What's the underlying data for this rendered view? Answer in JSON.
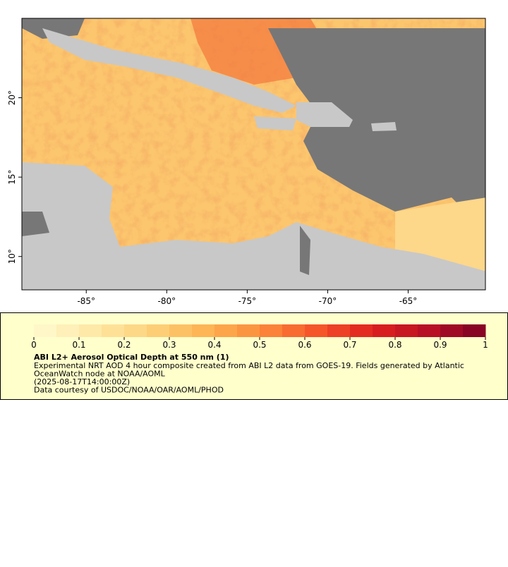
{
  "map": {
    "xlim": [
      -89,
      -60.2
    ],
    "ylim": [
      7.9,
      25
    ],
    "xticks": [
      {
        "value": -85,
        "label": "-85°"
      },
      {
        "value": -80,
        "label": "-80°"
      },
      {
        "value": -75,
        "label": "-75°"
      },
      {
        "value": -70,
        "label": "-70°"
      },
      {
        "value": -65,
        "label": "-65°"
      }
    ],
    "yticks": [
      {
        "value": 10,
        "label": "10°"
      },
      {
        "value": 15,
        "label": "15°"
      },
      {
        "value": 20,
        "label": "20°"
      }
    ]
  },
  "colorbar": {
    "lim": [
      0,
      1
    ],
    "ticks": [
      0,
      0.1,
      0.2,
      0.3,
      0.4,
      0.5,
      0.6,
      0.7,
      0.8,
      0.9,
      1
    ],
    "colors": [
      "#fffad0",
      "#fee9a8",
      "#fdd47e",
      "#fdb555",
      "#fc8d3c",
      "#f6552a",
      "#e0201f",
      "#b80f26",
      "#7c0024"
    ],
    "title": "ABI L2+ Aerosol Optical Depth at 550 nm (1)",
    "description": [
      "Experimental NRT AOD 4 hour composite created from ABI L2 data from GOES-19. Fields generated by Atlantic",
      "OceanWatch node at NOAA/AOML",
      "(2025-08-17T14:00:00Z)",
      "Data courtesy of USDOC/NOAA/OAR/AOML/PHOD"
    ]
  }
}
